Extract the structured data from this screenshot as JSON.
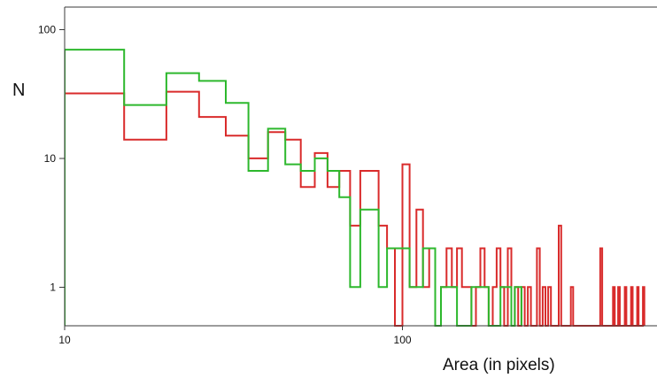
{
  "chart_data": {
    "type": "line",
    "drawstyle": "steps",
    "xlabel": "Area (in pixels)",
    "ylabel": "N",
    "xscale": "log",
    "yscale": "log",
    "xlim": [
      10,
      560
    ],
    "ylim": [
      0.5,
      150
    ],
    "x_ticks": [
      10,
      100
    ],
    "x_tick_labels": [
      "10",
      "100"
    ],
    "y_ticks": [
      1,
      10,
      100
    ],
    "y_tick_labels": [
      "1",
      "10",
      "100"
    ],
    "grid": false,
    "legend": "none",
    "series": [
      {
        "color": "#d92b2b",
        "bins": [
          [
            10,
            15,
            32
          ],
          [
            15,
            20,
            14
          ],
          [
            20,
            25,
            33
          ],
          [
            25,
            30,
            21
          ],
          [
            30,
            35,
            15
          ],
          [
            35,
            40,
            10
          ],
          [
            40,
            45,
            16
          ],
          [
            45,
            50,
            14
          ],
          [
            50,
            55,
            6
          ],
          [
            55,
            60,
            11
          ],
          [
            60,
            65,
            6
          ],
          [
            65,
            70,
            8
          ],
          [
            70,
            75,
            3
          ],
          [
            75,
            80,
            8
          ],
          [
            80,
            85,
            8
          ],
          [
            85,
            90,
            3
          ],
          [
            90,
            95,
            2
          ],
          [
            100,
            105,
            9
          ],
          [
            105,
            110,
            1
          ],
          [
            110,
            115,
            4
          ],
          [
            115,
            120,
            1
          ],
          [
            120,
            125,
            2
          ],
          [
            130,
            135,
            1
          ],
          [
            135,
            140,
            2
          ],
          [
            140,
            145,
            1
          ],
          [
            145,
            150,
            2
          ],
          [
            150,
            155,
            1
          ],
          [
            155,
            160,
            1
          ],
          [
            165,
            170,
            1
          ],
          [
            170,
            175,
            2
          ],
          [
            175,
            180,
            1
          ],
          [
            185,
            190,
            1
          ],
          [
            190,
            195,
            2
          ],
          [
            195,
            200,
            1
          ],
          [
            205,
            210,
            2
          ],
          [
            215,
            220,
            1
          ],
          [
            225,
            230,
            1
          ],
          [
            235,
            240,
            1
          ],
          [
            250,
            255,
            2
          ],
          [
            260,
            265,
            1
          ],
          [
            270,
            275,
            1
          ],
          [
            290,
            295,
            3
          ],
          [
            315,
            320,
            1
          ],
          [
            385,
            390,
            2
          ],
          [
            420,
            425,
            1
          ],
          [
            435,
            440,
            1
          ],
          [
            455,
            460,
            1
          ],
          [
            475,
            480,
            1
          ],
          [
            495,
            500,
            1
          ],
          [
            515,
            520,
            1
          ]
        ]
      },
      {
        "color": "#2db82d",
        "bins": [
          [
            10,
            15,
            70
          ],
          [
            15,
            20,
            26
          ],
          [
            20,
            25,
            46
          ],
          [
            25,
            30,
            40
          ],
          [
            30,
            35,
            27
          ],
          [
            35,
            40,
            8
          ],
          [
            40,
            45,
            17
          ],
          [
            45,
            50,
            9
          ],
          [
            50,
            55,
            8
          ],
          [
            55,
            60,
            10
          ],
          [
            60,
            65,
            8
          ],
          [
            65,
            70,
            5
          ],
          [
            70,
            75,
            1
          ],
          [
            75,
            80,
            4
          ],
          [
            80,
            85,
            4
          ],
          [
            85,
            90,
            1
          ],
          [
            90,
            95,
            2
          ],
          [
            95,
            100,
            2
          ],
          [
            100,
            105,
            2
          ],
          [
            105,
            110,
            1
          ],
          [
            110,
            115,
            1
          ],
          [
            115,
            120,
            2
          ],
          [
            120,
            125,
            2
          ],
          [
            130,
            135,
            1
          ],
          [
            135,
            140,
            1
          ],
          [
            140,
            145,
            1
          ],
          [
            160,
            165,
            1
          ],
          [
            165,
            170,
            1
          ],
          [
            170,
            175,
            1
          ],
          [
            175,
            180,
            1
          ],
          [
            195,
            200,
            1
          ],
          [
            200,
            205,
            1
          ],
          [
            205,
            210,
            1
          ],
          [
            215,
            220,
            1
          ],
          [
            220,
            225,
            1
          ]
        ]
      }
    ]
  }
}
